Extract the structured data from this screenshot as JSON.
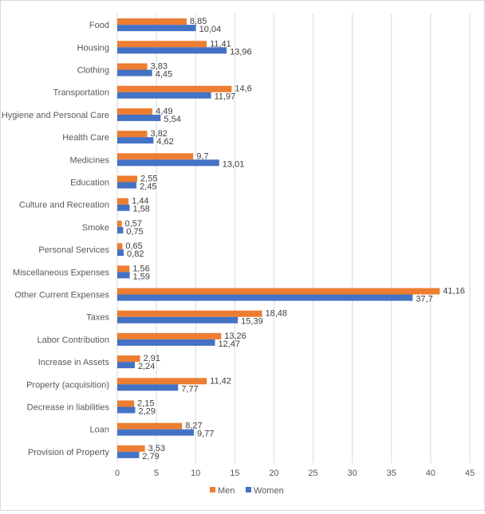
{
  "chart_data": {
    "type": "bar",
    "orientation": "horizontal",
    "title": "",
    "xlabel": "",
    "ylabel": "",
    "xlim": [
      0,
      45
    ],
    "x_ticks": [
      0,
      5,
      10,
      15,
      20,
      25,
      30,
      35,
      40,
      45
    ],
    "grid": "vertical",
    "legend_position": "bottom",
    "categories": [
      "Food",
      "Housing",
      "Clothing",
      "Transportation",
      "Hygiene and Personal Care",
      "Health Care",
      "Medicines",
      "Education",
      "Culture and Recreation",
      "Smoke",
      "Personal Services",
      "Miscellaneous Expenses",
      "Other Current Expenses",
      "Taxes",
      "Labor Contribution",
      "Increase in Assets",
      "Property (acquisition)",
      "Decrease in liabilities",
      "Loan",
      "Provision of Property"
    ],
    "series": [
      {
        "name": "Men",
        "color": "#ED7D31",
        "values": [
          8.85,
          11.41,
          3.83,
          14.6,
          4.49,
          3.82,
          9.7,
          2.55,
          1.44,
          0.57,
          0.65,
          1.56,
          41.16,
          18.48,
          13.26,
          2.91,
          11.42,
          2.15,
          8.27,
          3.53
        ],
        "labels": [
          "8,85",
          "11,41",
          "3,83",
          "14,6",
          "4,49",
          "3,82",
          "9,7",
          "2,55",
          "1,44",
          "0,57",
          "0,65",
          "1,56",
          "41,16",
          "18,48",
          "13,26",
          "2,91",
          "11,42",
          "2,15",
          "8,27",
          "3,53"
        ]
      },
      {
        "name": "Women",
        "color": "#4472C4",
        "values": [
          10.04,
          13.96,
          4.45,
          11.97,
          5.54,
          4.62,
          13.01,
          2.45,
          1.58,
          0.75,
          0.82,
          1.59,
          37.7,
          15.39,
          12.47,
          2.24,
          7.77,
          2.29,
          9.77,
          2.79
        ],
        "labels": [
          "10,04",
          "13,96",
          "4,45",
          "11,97",
          "5,54",
          "4,62",
          "13,01",
          "2,45",
          "1,58",
          "0,75",
          "0,82",
          "1,59",
          "37,7",
          "15,39",
          "12,47",
          "2,24",
          "7,77",
          "2,29",
          "9,77",
          "2,79"
        ]
      }
    ]
  }
}
